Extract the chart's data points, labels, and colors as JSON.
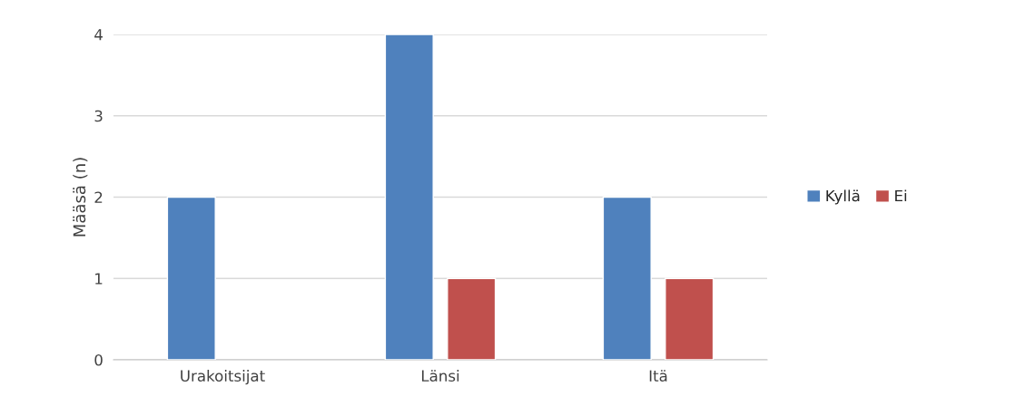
{
  "chart_data": {
    "type": "bar",
    "ylabel": "Määsä (n)",
    "categories": [
      "Urakoitsijat",
      "Länsi",
      "Itä"
    ],
    "series": [
      {
        "name": "Kyllä",
        "color": "#4f81bd",
        "values": [
          2,
          4,
          2
        ]
      },
      {
        "name": "Ei",
        "color": "#c0504d",
        "values": [
          null,
          1,
          1
        ]
      }
    ],
    "ylim": [
      0,
      4
    ],
    "yticks": [
      0,
      1,
      2,
      3,
      4
    ],
    "grid": "y",
    "legend": "right"
  }
}
